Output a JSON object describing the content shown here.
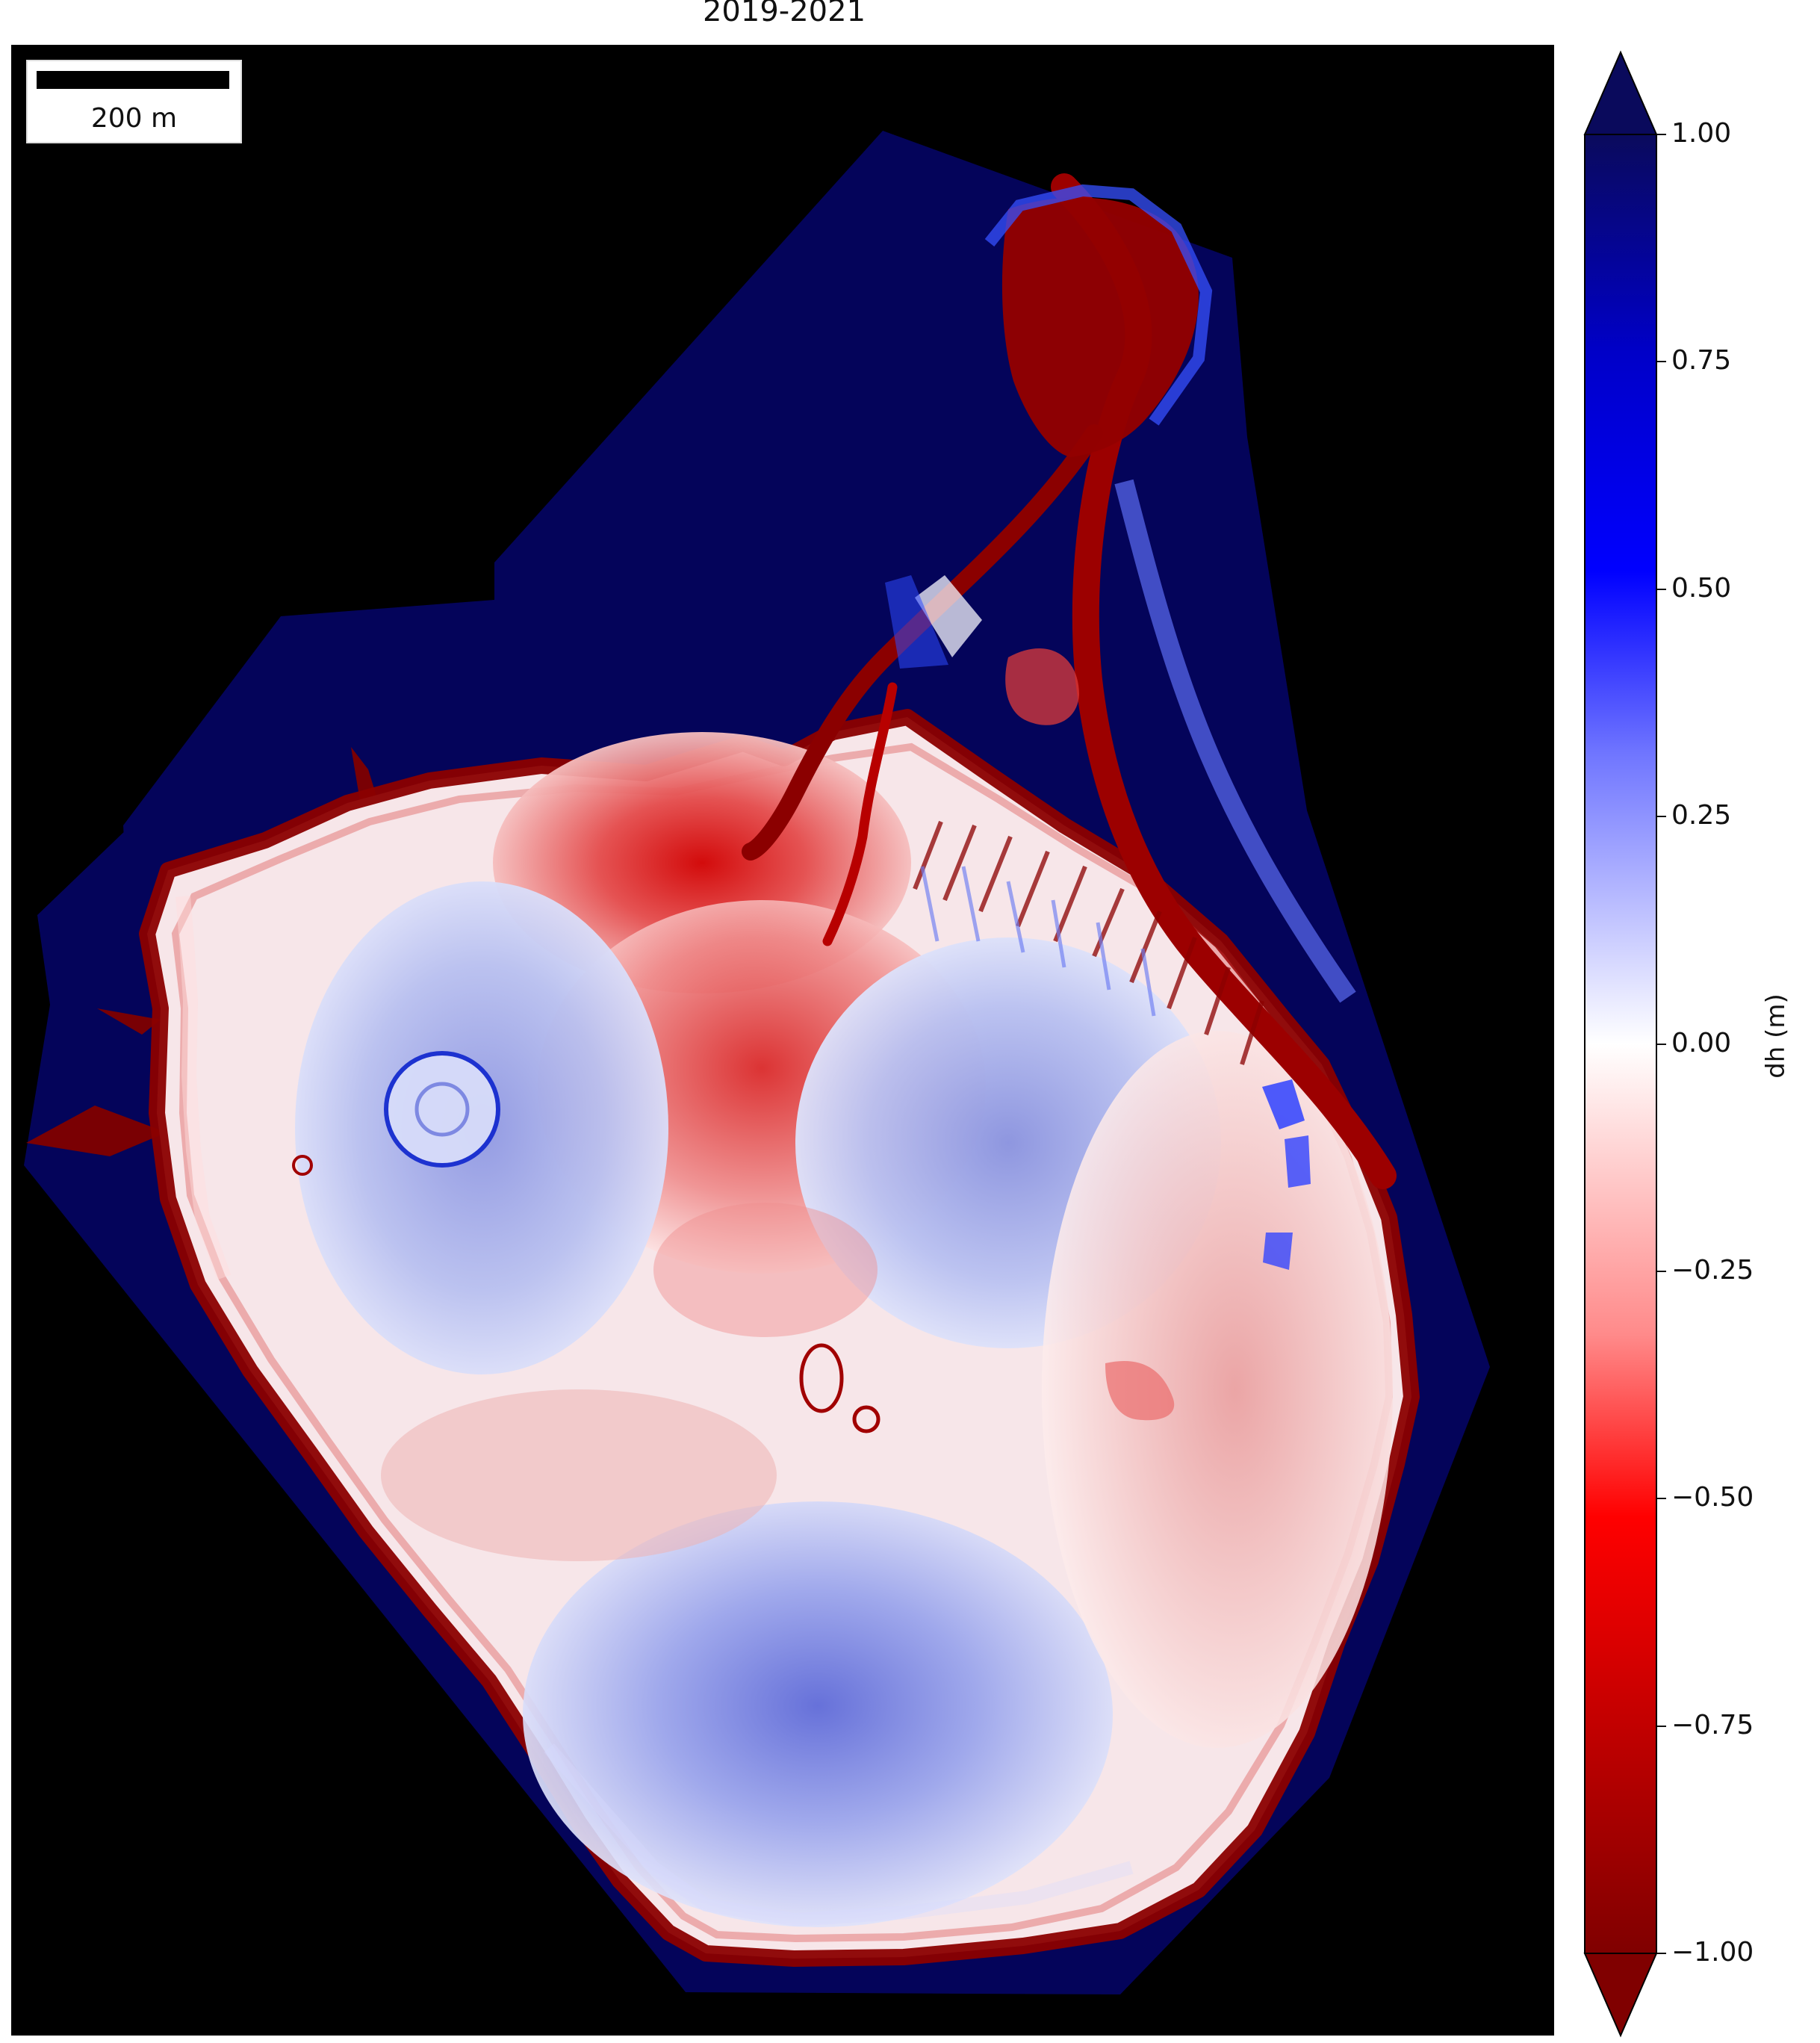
{
  "title": "2019-2021",
  "scalebar": {
    "label": "200 m"
  },
  "colorbar": {
    "label": "dh (m)",
    "min": -1.0,
    "max": 1.0,
    "ticks": [
      {
        "value": 1.0,
        "label": "1.00"
      },
      {
        "value": 0.75,
        "label": "0.75"
      },
      {
        "value": 0.5,
        "label": "0.50"
      },
      {
        "value": 0.25,
        "label": "0.25"
      },
      {
        "value": 0.0,
        "label": "0.00"
      },
      {
        "value": -0.25,
        "label": "−0.25"
      },
      {
        "value": -0.5,
        "label": "−0.50"
      },
      {
        "value": -0.75,
        "label": "−0.75"
      },
      {
        "value": -1.0,
        "label": "−1.00"
      }
    ],
    "extend": "both",
    "colors": {
      "max": "#0a0a5c",
      "positive": "#0000ff",
      "zero": "#ffffff",
      "negative": "#ff0000",
      "min": "#800000"
    }
  },
  "colors": {
    "background": "#000000",
    "nodata_fill": "#04045a",
    "loss": "#d21e1e",
    "strong_loss": "#8b0000",
    "gain": "#8a96e8"
  }
}
